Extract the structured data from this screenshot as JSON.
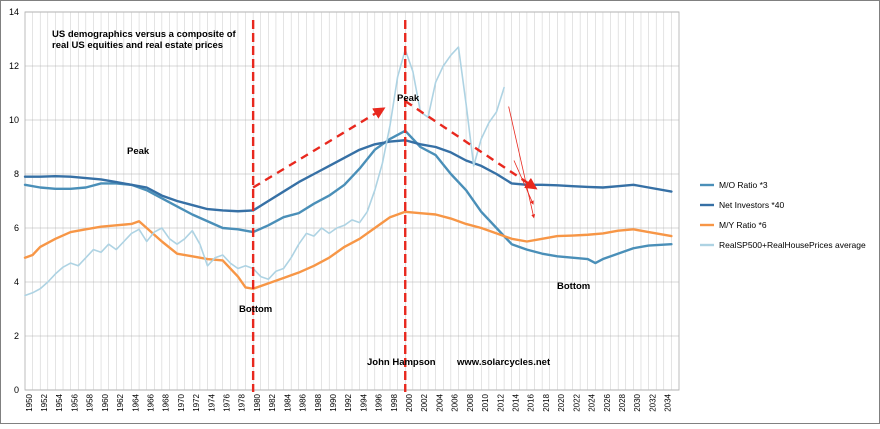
{
  "chart_data": {
    "type": "line",
    "title": "US demographics versus a composite of real US equities and real estate prices",
    "title_lines": [
      "US demographics versus a composite of",
      "real US equities and real estate prices"
    ],
    "xlabel": "",
    "ylabel": "",
    "xlim": [
      1950,
      2035
    ],
    "ylim": [
      0,
      14
    ],
    "y_ticks": [
      0,
      2,
      4,
      6,
      8,
      10,
      12,
      14
    ],
    "x_ticks": [
      1950,
      1952,
      1954,
      1956,
      1958,
      1960,
      1962,
      1964,
      1966,
      1968,
      1970,
      1972,
      1974,
      1976,
      1978,
      1980,
      1982,
      1984,
      1986,
      1988,
      1990,
      1992,
      1994,
      1996,
      1998,
      2000,
      2002,
      2004,
      2006,
      2008,
      2010,
      2012,
      2014,
      2016,
      2018,
      2020,
      2022,
      2024,
      2026,
      2028,
      2030,
      2032,
      2034
    ],
    "grid": true,
    "legend_position": "right",
    "series": [
      {
        "name": "M/O Ratio  *3",
        "color": "#4a8fb8",
        "points": [
          [
            1950,
            7.6
          ],
          [
            1952,
            7.5
          ],
          [
            1954,
            7.45
          ],
          [
            1956,
            7.45
          ],
          [
            1958,
            7.5
          ],
          [
            1960,
            7.65
          ],
          [
            1962,
            7.65
          ],
          [
            1964,
            7.6
          ],
          [
            1966,
            7.4
          ],
          [
            1968,
            7.1
          ],
          [
            1970,
            6.8
          ],
          [
            1972,
            6.5
          ],
          [
            1974,
            6.25
          ],
          [
            1976,
            6.0
          ],
          [
            1978,
            5.95
          ],
          [
            1980,
            5.85
          ],
          [
            1982,
            6.1
          ],
          [
            1984,
            6.4
          ],
          [
            1986,
            6.55
          ],
          [
            1988,
            6.9
          ],
          [
            1990,
            7.2
          ],
          [
            1992,
            7.6
          ],
          [
            1994,
            8.2
          ],
          [
            1996,
            8.9
          ],
          [
            1998,
            9.3
          ],
          [
            2000,
            9.6
          ],
          [
            2002,
            9.0
          ],
          [
            2004,
            8.7
          ],
          [
            2006,
            8.0
          ],
          [
            2008,
            7.4
          ],
          [
            2010,
            6.6
          ],
          [
            2012,
            6.0
          ],
          [
            2014,
            5.4
          ],
          [
            2016,
            5.2
          ],
          [
            2018,
            5.05
          ],
          [
            2020,
            4.95
          ],
          [
            2022,
            4.9
          ],
          [
            2024,
            4.85
          ],
          [
            2025,
            4.7
          ],
          [
            2026,
            4.85
          ],
          [
            2028,
            5.05
          ],
          [
            2030,
            5.25
          ],
          [
            2032,
            5.35
          ],
          [
            2035,
            5.4
          ]
        ]
      },
      {
        "name": "Net Investors *40",
        "color": "#3670a5",
        "points": [
          [
            1950,
            7.9
          ],
          [
            1952,
            7.9
          ],
          [
            1954,
            7.92
          ],
          [
            1956,
            7.9
          ],
          [
            1958,
            7.85
          ],
          [
            1960,
            7.8
          ],
          [
            1962,
            7.7
          ],
          [
            1964,
            7.6
          ],
          [
            1966,
            7.5
          ],
          [
            1968,
            7.2
          ],
          [
            1970,
            7.0
          ],
          [
            1972,
            6.85
          ],
          [
            1974,
            6.7
          ],
          [
            1976,
            6.65
          ],
          [
            1978,
            6.62
          ],
          [
            1980,
            6.65
          ],
          [
            1982,
            7.0
          ],
          [
            1984,
            7.35
          ],
          [
            1986,
            7.7
          ],
          [
            1988,
            8.0
          ],
          [
            1990,
            8.3
          ],
          [
            1992,
            8.6
          ],
          [
            1994,
            8.9
          ],
          [
            1996,
            9.1
          ],
          [
            1998,
            9.2
          ],
          [
            2000,
            9.25
          ],
          [
            2002,
            9.1
          ],
          [
            2004,
            9.0
          ],
          [
            2006,
            8.8
          ],
          [
            2008,
            8.5
          ],
          [
            2010,
            8.3
          ],
          [
            2012,
            8.0
          ],
          [
            2014,
            7.65
          ],
          [
            2016,
            7.6
          ],
          [
            2018,
            7.6
          ],
          [
            2020,
            7.58
          ],
          [
            2022,
            7.55
          ],
          [
            2024,
            7.52
          ],
          [
            2026,
            7.5
          ],
          [
            2028,
            7.55
          ],
          [
            2030,
            7.6
          ],
          [
            2032,
            7.5
          ],
          [
            2035,
            7.35
          ]
        ]
      },
      {
        "name": "M/Y Ratio *6",
        "color": "#f79646",
        "points": [
          [
            1950,
            4.9
          ],
          [
            1951,
            5.0
          ],
          [
            1952,
            5.3
          ],
          [
            1954,
            5.6
          ],
          [
            1956,
            5.85
          ],
          [
            1958,
            5.95
          ],
          [
            1960,
            6.05
          ],
          [
            1962,
            6.1
          ],
          [
            1964,
            6.15
          ],
          [
            1965,
            6.25
          ],
          [
            1966,
            6.0
          ],
          [
            1968,
            5.5
          ],
          [
            1970,
            5.05
          ],
          [
            1972,
            4.95
          ],
          [
            1974,
            4.85
          ],
          [
            1976,
            4.8
          ],
          [
            1978,
            4.2
          ],
          [
            1979,
            3.8
          ],
          [
            1980,
            3.75
          ],
          [
            1982,
            3.95
          ],
          [
            1984,
            4.15
          ],
          [
            1986,
            4.35
          ],
          [
            1988,
            4.6
          ],
          [
            1990,
            4.9
          ],
          [
            1992,
            5.3
          ],
          [
            1994,
            5.6
          ],
          [
            1996,
            6.0
          ],
          [
            1998,
            6.4
          ],
          [
            2000,
            6.6
          ],
          [
            2002,
            6.55
          ],
          [
            2004,
            6.5
          ],
          [
            2006,
            6.35
          ],
          [
            2008,
            6.15
          ],
          [
            2010,
            6.0
          ],
          [
            2012,
            5.8
          ],
          [
            2014,
            5.6
          ],
          [
            2016,
            5.5
          ],
          [
            2018,
            5.6
          ],
          [
            2020,
            5.7
          ],
          [
            2022,
            5.72
          ],
          [
            2024,
            5.75
          ],
          [
            2026,
            5.8
          ],
          [
            2028,
            5.9
          ],
          [
            2030,
            5.95
          ],
          [
            2032,
            5.85
          ],
          [
            2035,
            5.7
          ]
        ]
      },
      {
        "name": "RealSP500+RealHousePrices average",
        "color": "#aed3e3",
        "points": [
          [
            1950,
            3.5
          ],
          [
            1951,
            3.6
          ],
          [
            1952,
            3.75
          ],
          [
            1953,
            4.0
          ],
          [
            1954,
            4.3
          ],
          [
            1955,
            4.55
          ],
          [
            1956,
            4.7
          ],
          [
            1957,
            4.6
          ],
          [
            1958,
            4.9
          ],
          [
            1959,
            5.2
          ],
          [
            1960,
            5.1
          ],
          [
            1961,
            5.4
          ],
          [
            1962,
            5.2
          ],
          [
            1963,
            5.5
          ],
          [
            1964,
            5.8
          ],
          [
            1965,
            5.95
          ],
          [
            1966,
            5.5
          ],
          [
            1967,
            5.85
          ],
          [
            1968,
            6.0
          ],
          [
            1969,
            5.6
          ],
          [
            1970,
            5.4
          ],
          [
            1971,
            5.6
          ],
          [
            1972,
            5.9
          ],
          [
            1973,
            5.4
          ],
          [
            1974,
            4.6
          ],
          [
            1975,
            4.9
          ],
          [
            1976,
            5.0
          ],
          [
            1977,
            4.7
          ],
          [
            1978,
            4.5
          ],
          [
            1979,
            4.6
          ],
          [
            1980,
            4.5
          ],
          [
            1981,
            4.2
          ],
          [
            1982,
            4.1
          ],
          [
            1983,
            4.4
          ],
          [
            1984,
            4.5
          ],
          [
            1985,
            4.9
          ],
          [
            1986,
            5.4
          ],
          [
            1987,
            5.8
          ],
          [
            1988,
            5.7
          ],
          [
            1989,
            6.0
          ],
          [
            1990,
            5.8
          ],
          [
            1991,
            6.0
          ],
          [
            1992,
            6.1
          ],
          [
            1993,
            6.3
          ],
          [
            1994,
            6.2
          ],
          [
            1995,
            6.6
          ],
          [
            1996,
            7.4
          ],
          [
            1997,
            8.4
          ],
          [
            1998,
            9.8
          ],
          [
            1999,
            11.6
          ],
          [
            2000,
            12.6
          ],
          [
            2001,
            11.8
          ],
          [
            2002,
            10.3
          ],
          [
            2003,
            10.1
          ],
          [
            2004,
            11.4
          ],
          [
            2005,
            12.0
          ],
          [
            2006,
            12.4
          ],
          [
            2007,
            12.7
          ],
          [
            2008,
            10.6
          ],
          [
            2009,
            8.3
          ],
          [
            2010,
            9.3
          ],
          [
            2011,
            9.9
          ],
          [
            2012,
            10.3
          ],
          [
            2013,
            11.2
          ]
        ]
      }
    ],
    "annotations": {
      "peak_left": "Peak",
      "peak_center": "Peak",
      "bottom_left": "Bottom",
      "bottom_right": "Bottom",
      "credit_name": "John Hampson",
      "credit_site": "www.solarcycles.net"
    },
    "vertical_markers": [
      1980,
      2000
    ],
    "trend_arrows": [
      {
        "from": [
          1980,
          7.5
        ],
        "to": [
          1997,
          10.4
        ]
      },
      {
        "from": [
          2000,
          10.7
        ],
        "to": [
          2017,
          7.5
        ]
      }
    ]
  },
  "colors": {
    "marker_red": "#e8281e",
    "grid": "#c8c8c8",
    "frame": "#808080"
  }
}
